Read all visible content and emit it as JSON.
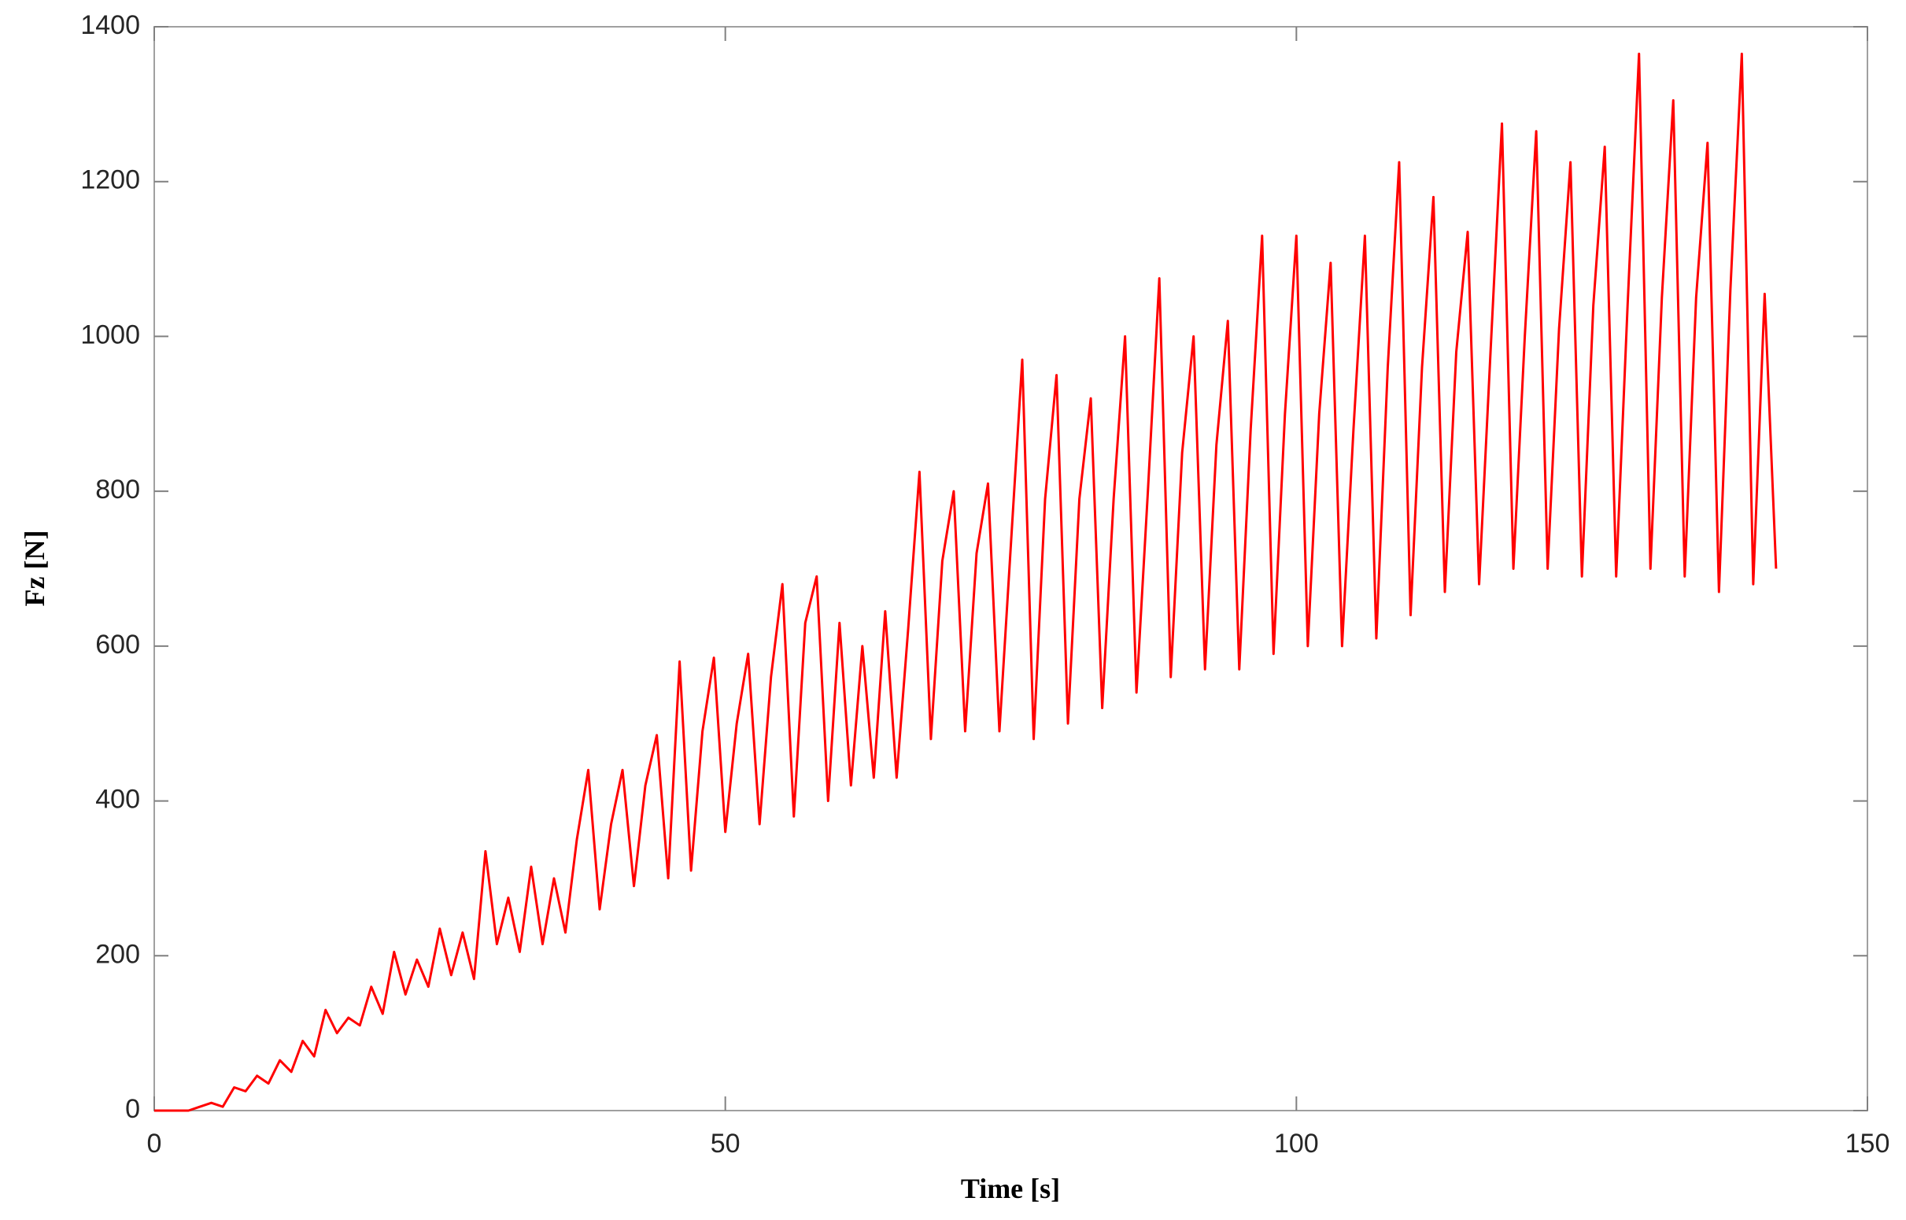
{
  "chart_data": {
    "type": "line",
    "x_label": "Time [s]",
    "y_label": "Fz [N]",
    "xlim": [
      0,
      150
    ],
    "ylim": [
      0,
      1400
    ],
    "xticks": [
      0,
      50,
      100,
      150
    ],
    "yticks": [
      0,
      200,
      400,
      600,
      800,
      1000,
      1200,
      1400
    ],
    "grid": false,
    "series": [
      {
        "color": "#ff0000",
        "x": [
          0,
          1,
          2,
          3,
          4,
          5,
          6,
          7,
          8,
          9,
          10,
          11,
          12,
          13,
          14,
          15,
          16,
          17,
          18,
          19,
          20,
          21,
          22,
          23,
          24,
          25,
          26,
          27,
          28,
          29,
          30,
          31,
          32,
          33,
          34,
          35,
          36,
          37,
          38,
          39,
          40,
          41,
          42,
          43,
          44,
          45,
          46,
          47,
          48,
          49,
          50,
          51,
          52,
          53,
          54,
          55,
          56,
          57,
          58,
          59,
          60,
          61,
          62,
          63,
          64,
          65,
          66,
          67,
          68,
          69,
          70,
          71,
          72,
          73,
          74,
          75,
          76,
          77,
          78,
          79,
          80,
          81,
          82,
          83,
          84,
          85,
          86,
          87,
          88,
          89,
          90,
          91,
          92,
          93,
          94,
          95,
          96,
          97,
          98,
          99,
          100,
          101,
          102,
          103,
          104,
          105,
          106,
          107,
          108,
          109,
          110,
          111,
          112,
          113,
          114,
          115,
          116,
          117,
          118,
          119,
          120,
          121,
          122,
          123,
          124,
          125,
          126,
          127,
          128,
          129,
          130,
          131,
          132,
          133,
          134,
          135,
          136,
          137,
          138,
          139,
          140,
          141,
          142
        ],
        "values": [
          0,
          0,
          0,
          0,
          5,
          10,
          5,
          30,
          25,
          45,
          35,
          65,
          50,
          90,
          70,
          130,
          100,
          120,
          110,
          160,
          125,
          205,
          150,
          195,
          160,
          235,
          175,
          230,
          170,
          335,
          215,
          275,
          205,
          315,
          215,
          300,
          230,
          350,
          440,
          260,
          370,
          440,
          290,
          420,
          485,
          300,
          580,
          310,
          490,
          585,
          360,
          500,
          590,
          370,
          560,
          680,
          380,
          630,
          690,
          400,
          630,
          420,
          600,
          430,
          645,
          430,
          620,
          825,
          480,
          710,
          800,
          490,
          720,
          810,
          490,
          730,
          970,
          480,
          790,
          950,
          500,
          790,
          920,
          520,
          790,
          1000,
          540,
          800,
          1075,
          560,
          850,
          1000,
          570,
          860,
          1020,
          570,
          880,
          1130,
          590,
          900,
          1130,
          600,
          900,
          1095,
          600,
          880,
          1130,
          610,
          960,
          1225,
          640,
          960,
          1180,
          670,
          980,
          1135,
          680,
          980,
          1275,
          700,
          1000,
          1265,
          700,
          1010,
          1225,
          690,
          1040,
          1245,
          690,
          1040,
          1365,
          700,
          1050,
          1305,
          690,
          1050,
          1250,
          670,
          1060,
          1365,
          680,
          1055,
          700
        ]
      }
    ]
  }
}
